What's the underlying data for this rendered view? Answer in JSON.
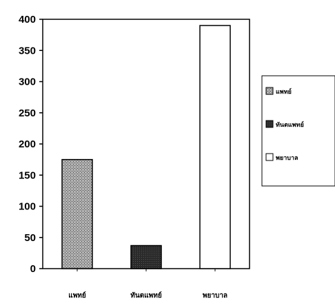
{
  "chart_data": {
    "type": "bar",
    "categories": [
      "แพทย์",
      "ทันตแพทย์",
      "พยาบาล"
    ],
    "values": [
      175,
      37,
      390
    ],
    "ylim": [
      0,
      400
    ],
    "yticks": [
      0,
      50,
      100,
      150,
      200,
      250,
      300,
      350,
      400
    ],
    "grid": false,
    "legend": {
      "placement": "right",
      "entries": [
        {
          "label": "แพทย์",
          "style": "stipple"
        },
        {
          "label": "ทันตแพทย์",
          "style": "dark"
        },
        {
          "label": "พยาบาล",
          "style": "white"
        }
      ]
    },
    "colors": {
      "stipple": "#8c8c8c",
      "dark": "#2a2a2a",
      "white": "#ffffff",
      "axis": "#000000"
    }
  }
}
